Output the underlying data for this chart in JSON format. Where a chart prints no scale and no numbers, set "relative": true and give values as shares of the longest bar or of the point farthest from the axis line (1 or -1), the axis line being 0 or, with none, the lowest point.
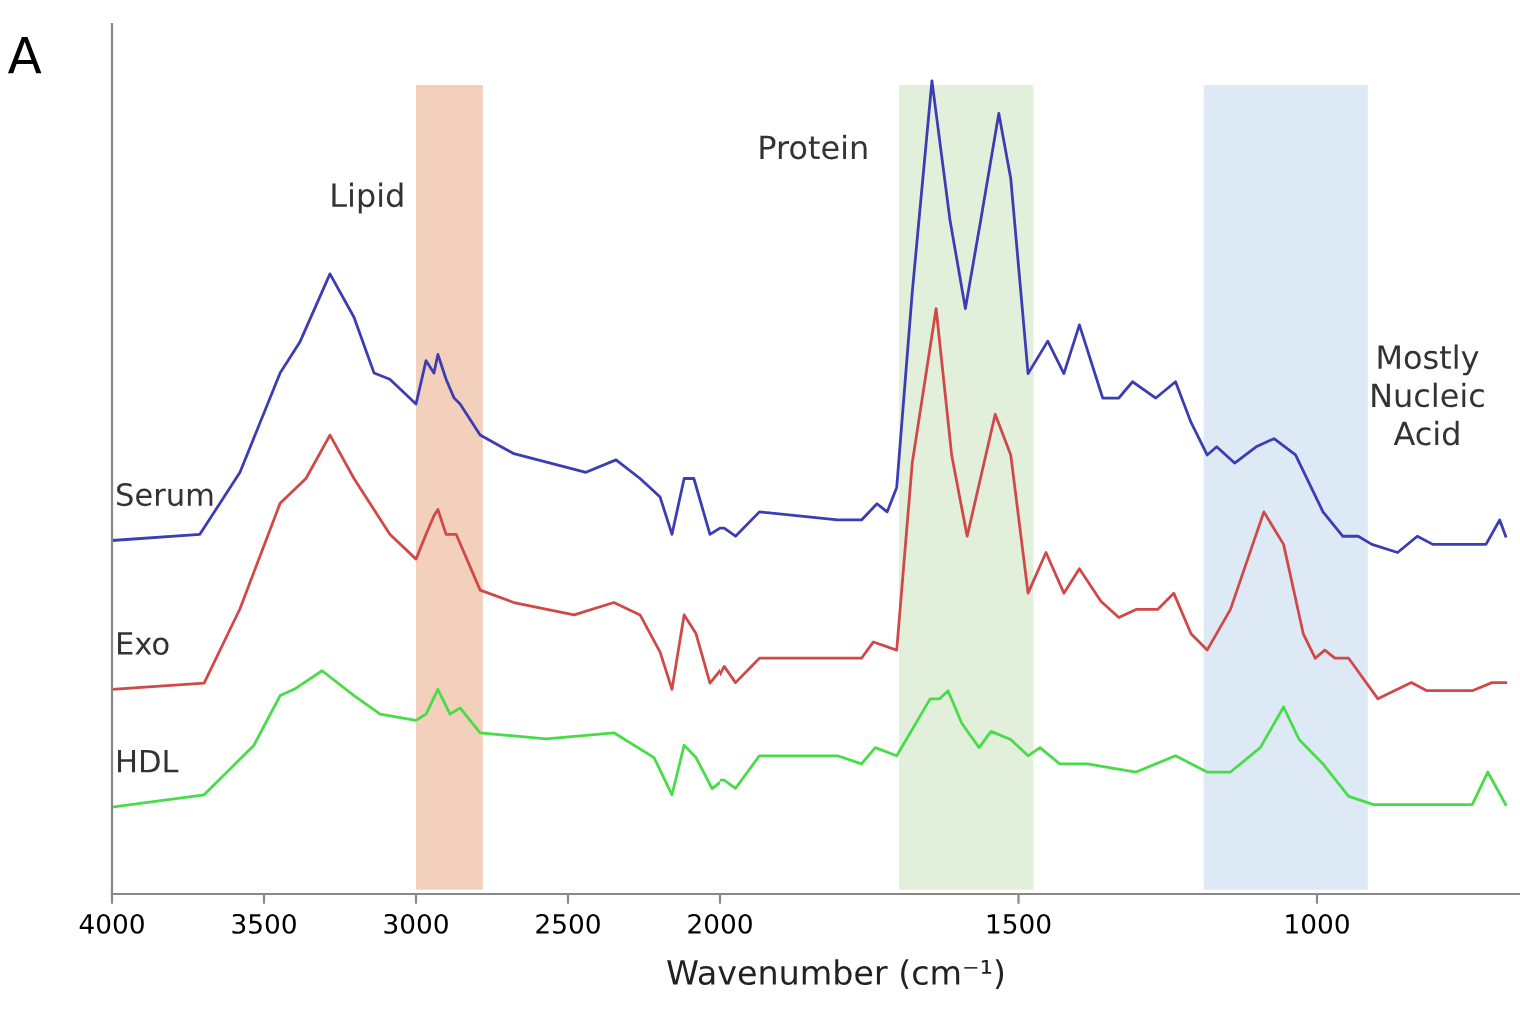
{
  "chart_data": [
    {
      "type": "line",
      "relative": true,
      "xlabel": "Wavenumber (cm⁻¹)",
      "annotations": [
        "A"
      ],
      "xlim": [
        4000,
        2000
      ],
      "xticks": [
        4000,
        3500,
        3000,
        2500,
        2000
      ],
      "grid": false,
      "legend": false,
      "marker": "none",
      "line_style": "solid",
      "bands": [
        {
          "axis": "x",
          "from": 3000,
          "to": 2780,
          "label": "Lipid",
          "color": "#f2d0bc"
        }
      ],
      "series": [
        {
          "name": "Serum",
          "color": "#3c3cb4",
          "x": [
            4000,
            3711,
            3579,
            3447,
            3382,
            3283,
            3204,
            3138,
            3086,
            3000,
            2967,
            2941,
            2928,
            2901,
            2875,
            2855,
            2789,
            2678,
            2441,
            2342,
            2263,
            2197,
            2158,
            2118,
            2086,
            2033,
            2000
          ],
          "values": [
            0.57,
            0.58,
            0.68,
            0.84,
            0.89,
            1.0,
            0.93,
            0.84,
            0.83,
            0.79,
            0.86,
            0.84,
            0.87,
            0.83,
            0.8,
            0.79,
            0.74,
            0.71,
            0.68,
            0.7,
            0.67,
            0.64,
            0.58,
            0.67,
            0.67,
            0.58,
            0.59
          ]
        },
        {
          "name": "Exo",
          "color": "#d04848",
          "x": [
            4000,
            3697,
            3579,
            3447,
            3362,
            3283,
            3204,
            3086,
            3000,
            2967,
            2941,
            2928,
            2901,
            2868,
            2789,
            2678,
            2480,
            2349,
            2263,
            2197,
            2158,
            2118,
            2079,
            2033,
            2000
          ],
          "values": [
            0.33,
            0.34,
            0.46,
            0.63,
            0.67,
            0.74,
            0.67,
            0.58,
            0.54,
            0.58,
            0.61,
            0.62,
            0.58,
            0.58,
            0.49,
            0.47,
            0.45,
            0.47,
            0.45,
            0.39,
            0.33,
            0.45,
            0.42,
            0.34,
            0.36
          ]
        },
        {
          "name": "HDL",
          "color": "#48dc48",
          "x": [
            4000,
            3697,
            3533,
            3447,
            3401,
            3309,
            3204,
            3118,
            3000,
            2967,
            2928,
            2888,
            2855,
            2789,
            2572,
            2349,
            2217,
            2158,
            2118,
            2079,
            2026,
            2000
          ],
          "values": [
            0.14,
            0.16,
            0.24,
            0.32,
            0.33,
            0.36,
            0.32,
            0.29,
            0.28,
            0.29,
            0.33,
            0.29,
            0.3,
            0.26,
            0.25,
            0.26,
            0.22,
            0.16,
            0.24,
            0.22,
            0.17,
            0.18
          ]
        }
      ]
    },
    {
      "type": "line",
      "relative": true,
      "tick_labels": "x",
      "xlim": [
        2000,
        660
      ],
      "xticks": [
        1500,
        1000
      ],
      "grid": false,
      "legend": false,
      "marker": "none",
      "line_style": "solid",
      "bands": [
        {
          "axis": "x",
          "from": 1700,
          "to": 1475,
          "label": "Protein",
          "color": "#e2efda"
        },
        {
          "axis": "x",
          "from": 1190,
          "to": 915,
          "label": "Mostly\nNucleic\nAcid",
          "color": "#dde9f5"
        }
      ],
      "series": [
        {
          "color": "#3c3cb4",
          "x": [
            2000,
            1993,
            1974,
            1934,
            1803,
            1763,
            1737,
            1720,
            1704,
            1678,
            1645,
            1615,
            1589,
            1563,
            1533,
            1513,
            1484,
            1451,
            1424,
            1398,
            1359,
            1332,
            1309,
            1270,
            1237,
            1211,
            1184,
            1168,
            1138,
            1102,
            1072,
            1036,
            990,
            957,
            931,
            908,
            865,
            832,
            806,
            740,
            717,
            694,
            684
          ],
          "values": [
            0.45,
            0.45,
            0.44,
            0.47,
            0.46,
            0.46,
            0.48,
            0.47,
            0.5,
            0.74,
            1.0,
            0.83,
            0.72,
            0.83,
            0.96,
            0.88,
            0.64,
            0.68,
            0.64,
            0.7,
            0.61,
            0.61,
            0.63,
            0.61,
            0.63,
            0.58,
            0.54,
            0.55,
            0.53,
            0.55,
            0.56,
            0.54,
            0.47,
            0.44,
            0.44,
            0.43,
            0.42,
            0.44,
            0.43,
            0.43,
            0.43,
            0.46,
            0.44
          ]
        },
        {
          "color": "#d04848",
          "x": [
            2000,
            1993,
            1974,
            1934,
            1803,
            1763,
            1743,
            1704,
            1678,
            1638,
            1612,
            1586,
            1539,
            1513,
            1484,
            1454,
            1424,
            1398,
            1362,
            1332,
            1303,
            1267,
            1240,
            1211,
            1184,
            1145,
            1089,
            1056,
            1023,
            1003,
            987,
            970,
            947,
            898,
            842,
            816,
            740,
            707,
            684
          ],
          "values": [
            0.27,
            0.28,
            0.26,
            0.29,
            0.29,
            0.29,
            0.31,
            0.3,
            0.53,
            0.72,
            0.54,
            0.44,
            0.59,
            0.54,
            0.37,
            0.42,
            0.37,
            0.4,
            0.36,
            0.34,
            0.35,
            0.35,
            0.37,
            0.32,
            0.3,
            0.35,
            0.47,
            0.43,
            0.32,
            0.29,
            0.3,
            0.29,
            0.29,
            0.24,
            0.26,
            0.25,
            0.25,
            0.26,
            0.26
          ]
        },
        {
          "color": "#48dc48",
          "x": [
            2000,
            1993,
            1974,
            1934,
            1803,
            1763,
            1740,
            1704,
            1648,
            1632,
            1618,
            1595,
            1566,
            1546,
            1513,
            1484,
            1464,
            1431,
            1385,
            1303,
            1237,
            1184,
            1145,
            1095,
            1056,
            1030,
            990,
            947,
            905,
            740,
            714,
            684
          ],
          "values": [
            0.14,
            0.14,
            0.13,
            0.17,
            0.17,
            0.16,
            0.18,
            0.17,
            0.24,
            0.24,
            0.25,
            0.21,
            0.18,
            0.2,
            0.19,
            0.17,
            0.18,
            0.16,
            0.16,
            0.15,
            0.17,
            0.15,
            0.15,
            0.18,
            0.23,
            0.19,
            0.16,
            0.12,
            0.11,
            0.11,
            0.15,
            0.11
          ]
        }
      ]
    }
  ]
}
